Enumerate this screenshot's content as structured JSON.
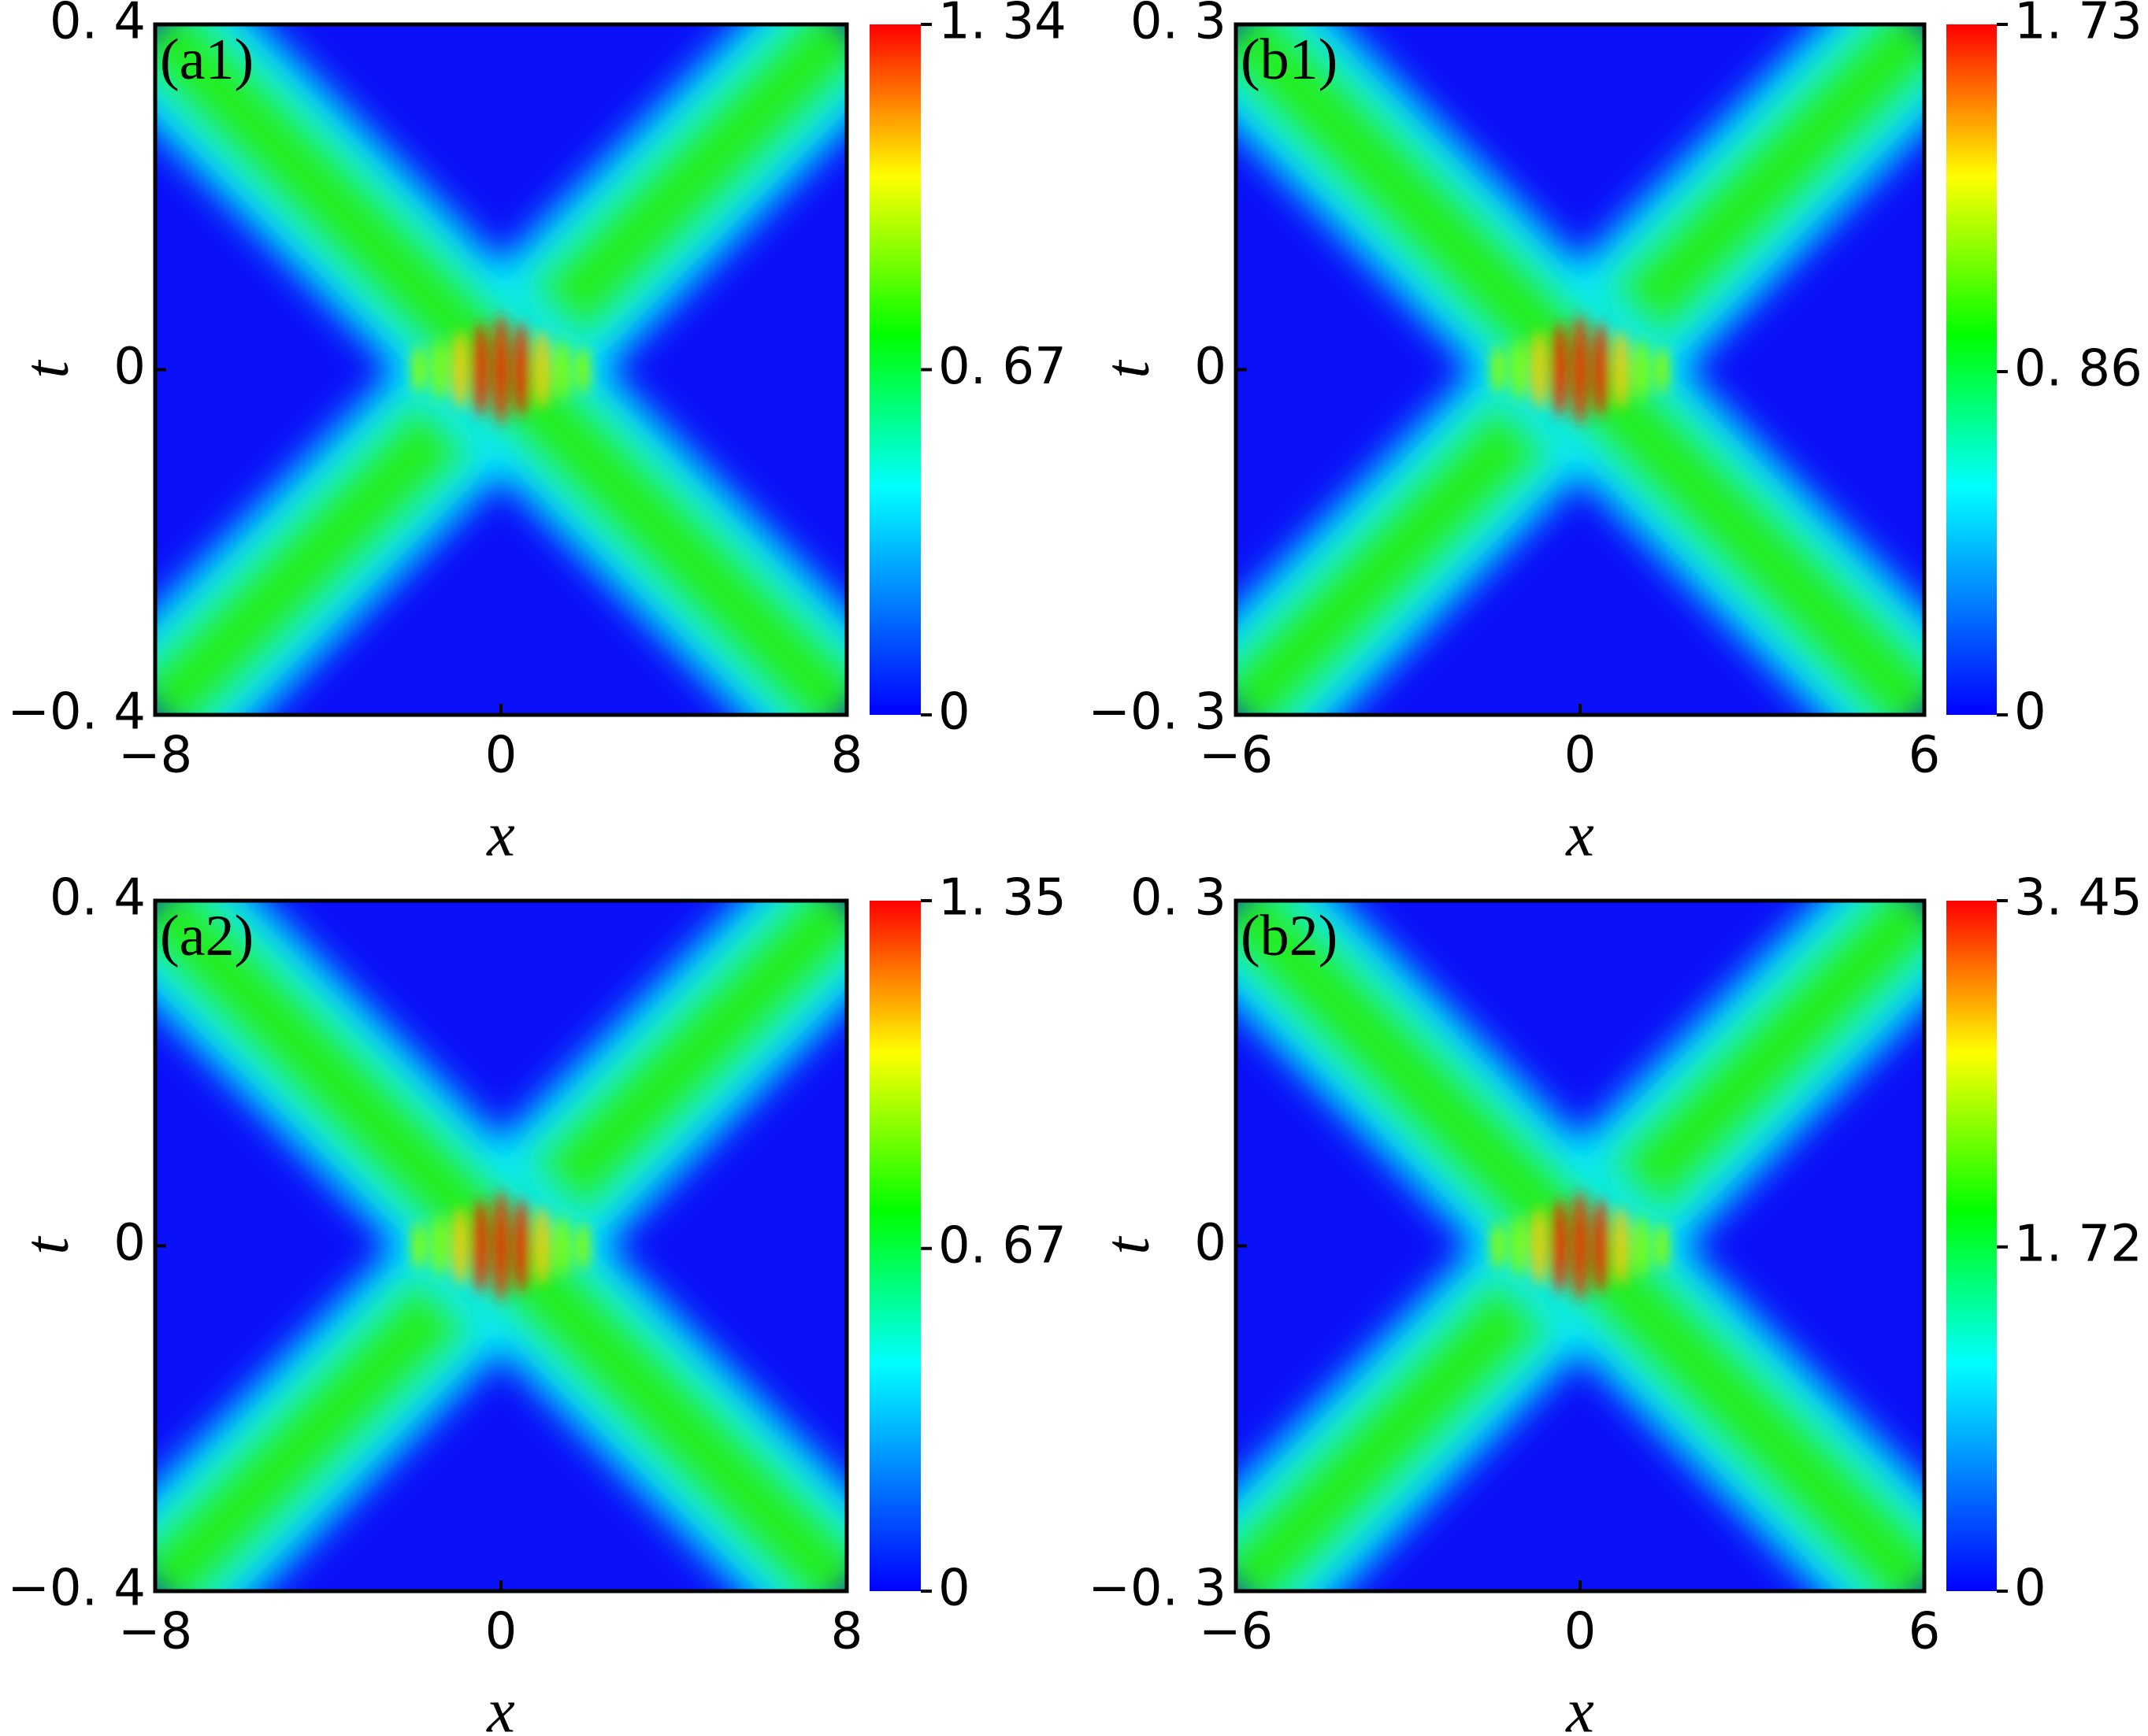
{
  "chart_data": [
    {
      "type": "heatmap",
      "panel_label": "(a1)",
      "xlabel": "x",
      "ylabel": "t",
      "xlim": [
        -8,
        8
      ],
      "xticks": [
        {
          "value": -8,
          "label": "−8"
        },
        0,
        8
      ],
      "ylim": [
        -0.4,
        0.4
      ],
      "yticks": [
        {
          "value": -0.4,
          "label": "−0. 4"
        },
        0,
        {
          "value": 0.4,
          "label": "0. 4"
        }
      ],
      "clim": [
        0,
        1.34
      ],
      "cticks": [
        0,
        {
          "value": 0.67,
          "label": "0. 67"
        },
        {
          "value": 1.34,
          "label": "1. 34"
        }
      ],
      "colormap": "jet"
    },
    {
      "type": "heatmap",
      "panel_label": "(b1)",
      "xlabel": "x",
      "ylabel": "t",
      "xlim": [
        -6,
        6
      ],
      "xticks": [
        {
          "value": -6,
          "label": "−6"
        },
        0,
        6
      ],
      "ylim": [
        -0.3,
        0.3
      ],
      "yticks": [
        {
          "value": -0.3,
          "label": "−0. 3"
        },
        0,
        {
          "value": 0.3,
          "label": "0. 3"
        }
      ],
      "clim": [
        0,
        1.73
      ],
      "cticks": [
        0,
        {
          "value": 0.86,
          "label": "0. 86"
        },
        {
          "value": 1.73,
          "label": "1. 73"
        }
      ],
      "colormap": "jet"
    },
    {
      "type": "heatmap",
      "panel_label": "(a2)",
      "xlabel": "x",
      "ylabel": "t",
      "xlim": [
        -8,
        8
      ],
      "xticks": [
        {
          "value": -8,
          "label": "−8"
        },
        0,
        8
      ],
      "ylim": [
        -0.4,
        0.4
      ],
      "yticks": [
        {
          "value": -0.4,
          "label": "−0. 4"
        },
        0,
        {
          "value": 0.4,
          "label": "0. 4"
        }
      ],
      "clim": [
        0,
        1.35
      ],
      "cticks": [
        0,
        {
          "value": 0.67,
          "label": "0. 67"
        },
        {
          "value": 1.35,
          "label": "1. 35"
        }
      ],
      "colormap": "jet"
    },
    {
      "type": "heatmap",
      "panel_label": "(b2)",
      "xlabel": "x",
      "ylabel": "t",
      "xlim": [
        -6,
        6
      ],
      "xticks": [
        {
          "value": -6,
          "label": "−6"
        },
        0,
        6
      ],
      "ylim": [
        -0.3,
        0.3
      ],
      "yticks": [
        {
          "value": -0.3,
          "label": "−0. 3"
        },
        0,
        {
          "value": 0.3,
          "label": "0. 3"
        }
      ],
      "clim": [
        0,
        3.45
      ],
      "cticks": [
        0,
        {
          "value": 1.72,
          "label": "1. 72"
        },
        {
          "value": 3.45,
          "label": "3. 45"
        }
      ],
      "colormap": "jet"
    }
  ]
}
